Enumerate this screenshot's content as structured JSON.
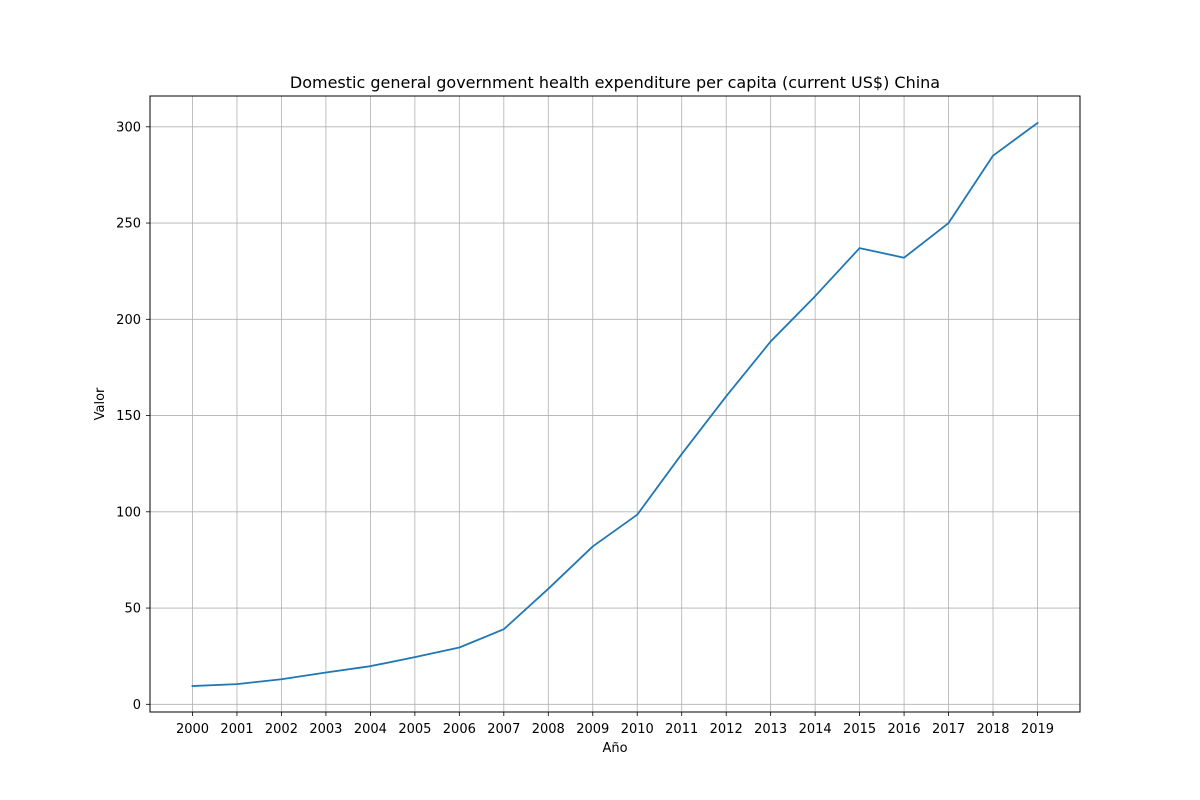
{
  "chart_data": {
    "type": "line",
    "title": "Domestic general government health expenditure per capita (current US$) China",
    "xlabel": "Año",
    "ylabel": "Valor",
    "x": [
      "2000",
      "2001",
      "2002",
      "2003",
      "2004",
      "2005",
      "2006",
      "2007",
      "2008",
      "2009",
      "2010",
      "2011",
      "2012",
      "2013",
      "2014",
      "2015",
      "2016",
      "2017",
      "2018",
      "2019"
    ],
    "series": [
      {
        "values": [
          9.5,
          10.5,
          13.0,
          16.5,
          19.8,
          24.5,
          29.5,
          39.0,
          60.0,
          82.0,
          98.5,
          130.0,
          160.0,
          188.5,
          212.0,
          237.0,
          232.0,
          250.0,
          285.0,
          302.0
        ]
      }
    ],
    "yticks": [
      "0",
      "50",
      "100",
      "150",
      "200",
      "250",
      "300"
    ],
    "ylim": [
      -4,
      316
    ],
    "grid": true,
    "line_color": "#1f77b4",
    "grid_color": "#b0b0b0"
  }
}
